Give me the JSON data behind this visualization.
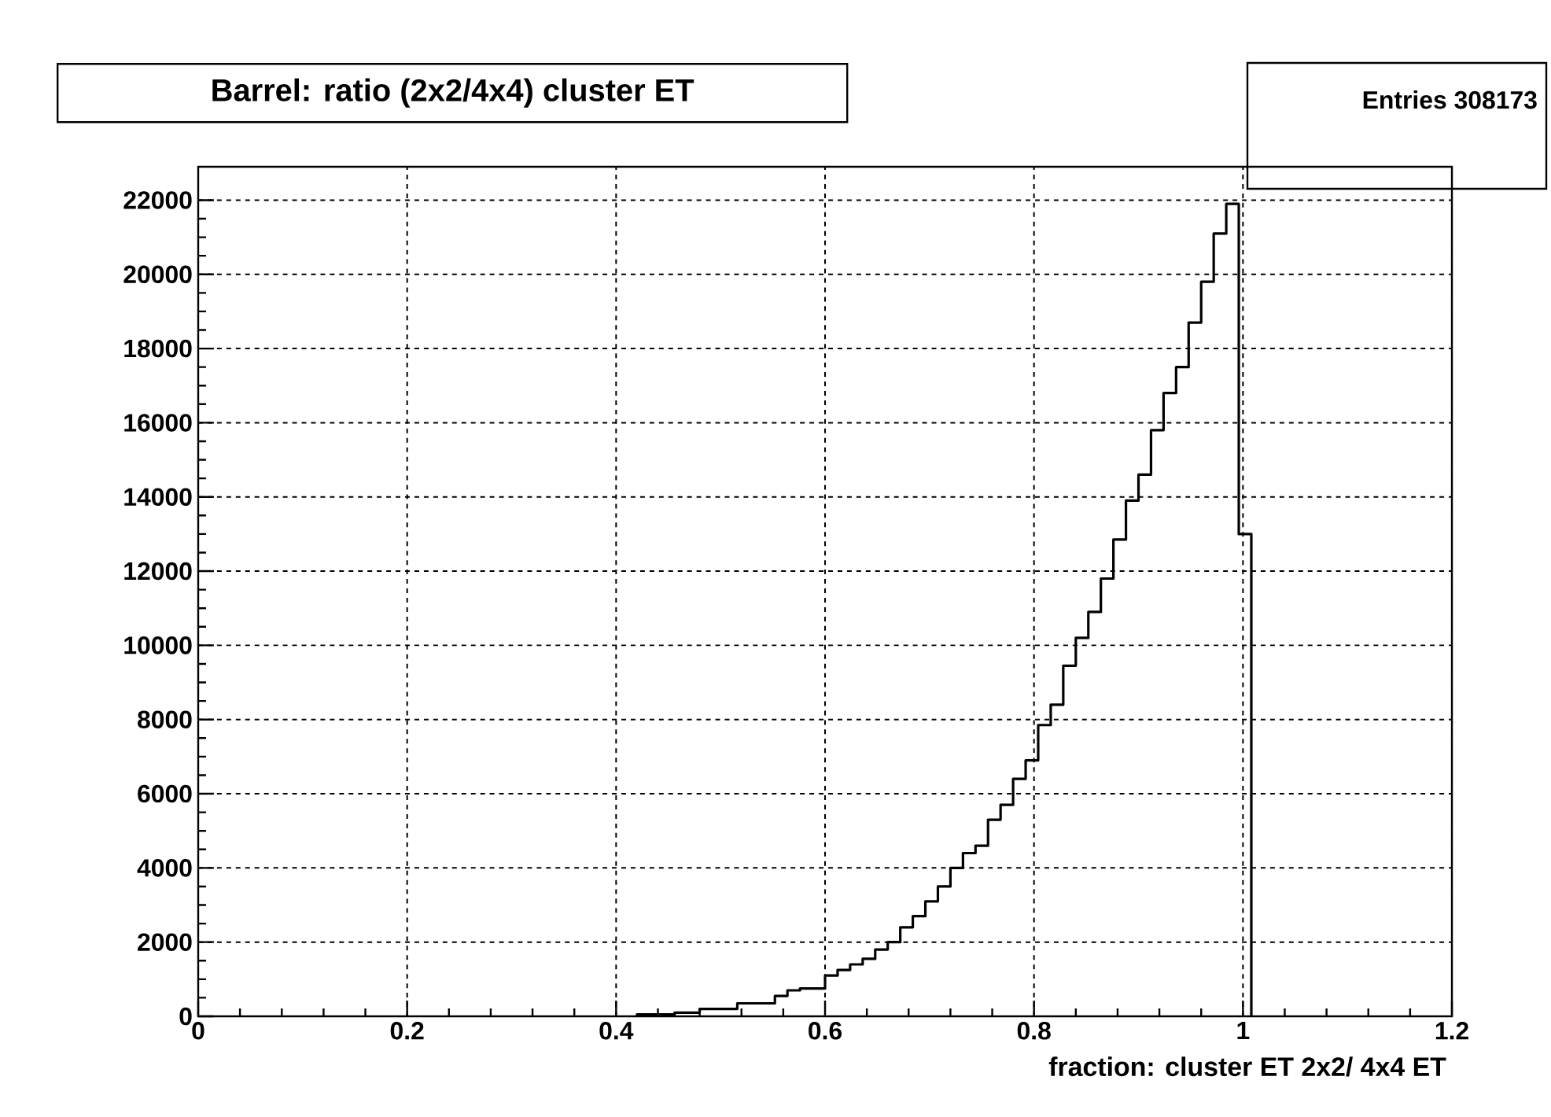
{
  "chart_data": {
    "type": "histogram",
    "title": "Barrel: ratio (2x2/4x4) cluster ET",
    "xlabel": "fraction: cluster ET 2x2/ 4x4 ET",
    "annotations": [
      "Entries 308173"
    ],
    "bins": [
      0.42,
      0.432,
      0.444,
      0.456,
      0.468,
      0.48,
      0.492,
      0.504,
      0.516,
      0.528,
      0.54,
      0.552,
      0.564,
      0.576,
      0.588,
      0.6,
      0.612,
      0.624,
      0.636,
      0.648,
      0.66,
      0.672,
      0.684,
      0.696,
      0.708,
      0.72,
      0.732,
      0.744,
      0.756,
      0.768,
      0.78,
      0.792,
      0.804,
      0.816,
      0.828,
      0.84,
      0.852,
      0.864,
      0.876,
      0.888,
      0.9,
      0.912,
      0.924,
      0.936,
      0.948,
      0.96,
      0.972,
      0.984,
      0.996,
      1.008
    ],
    "values": [
      50,
      50,
      50,
      100,
      100,
      200,
      200,
      200,
      350,
      350,
      350,
      550,
      700,
      750,
      750,
      1100,
      1250,
      1400,
      1550,
      1800,
      2000,
      2400,
      2700,
      3100,
      3500,
      4000,
      4400,
      4600,
      5300,
      5700,
      6400,
      6900,
      7850,
      8400,
      9450,
      10200,
      10900,
      11800,
      12850,
      13900,
      14600,
      15800,
      16800,
      17500,
      18700,
      19800,
      21100,
      21900,
      13000
    ],
    "color": "#000000",
    "xlim": [
      0,
      1.2
    ],
    "ylim": [
      0,
      22900
    ],
    "xticks": [
      0,
      0.2,
      0.4,
      0.6,
      0.8,
      1,
      1.2
    ],
    "yticks": [
      0,
      2000,
      4000,
      6000,
      8000,
      10000,
      12000,
      14000,
      16000,
      18000,
      20000,
      22000
    ],
    "grid": true
  }
}
